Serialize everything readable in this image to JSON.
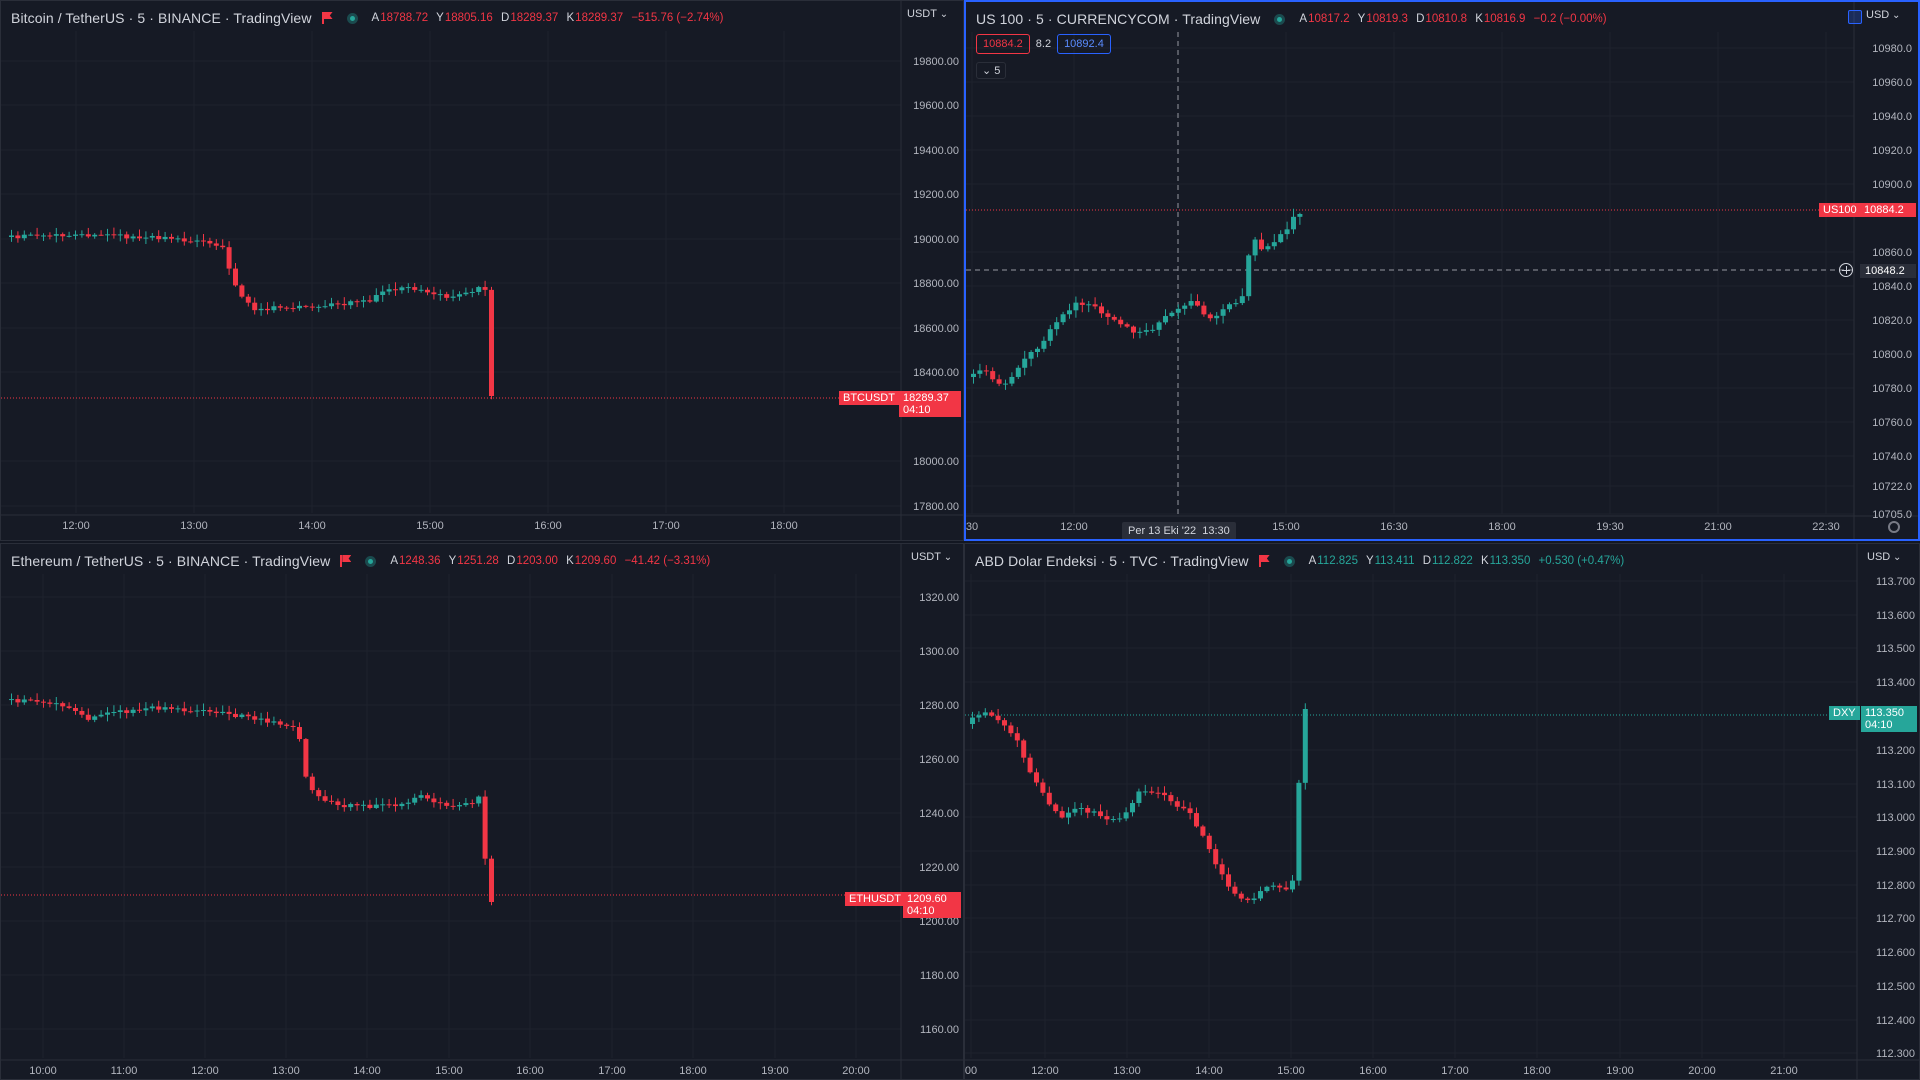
{
  "colors": {
    "up": "#26a69a",
    "down": "#f23645",
    "grid": "#1e222d",
    "axis_text": "#b2b5be",
    "active_border": "#2962ff",
    "bg": "#161a25"
  },
  "panes": [
    {
      "id": "btc",
      "symbol_line": "Bitcoin / TetherUS · 5 · BINANCE · TradingView",
      "ohlc": [
        {
          "k": "A",
          "v": "18788.72"
        },
        {
          "k": "Y",
          "v": "18805.16"
        },
        {
          "k": "D",
          "v": "18289.37"
        },
        {
          "k": "K",
          "v": "18289.37"
        }
      ],
      "change": "−515.76 (−2.74%)",
      "direction": "down",
      "currency": "USDT",
      "price_ticks": [
        "19800.00",
        "19600.00",
        "19400.00",
        "19200.00",
        "19000.00",
        "18800.00",
        "18600.00",
        "18400.00",
        "18000.00",
        "17800.00"
      ],
      "time_ticks": [
        "12:00",
        "13:00",
        "14:00",
        "15:00",
        "16:00",
        "17:00",
        "18:00"
      ],
      "ticker_label": "BTCUSDT",
      "last_price": "18289.37",
      "countdown": "04:10"
    },
    {
      "id": "us100",
      "symbol_line": "US 100 · 5 · CURRENCYCOM · TradingView",
      "ohlc": [
        {
          "k": "A",
          "v": "10817.2"
        },
        {
          "k": "Y",
          "v": "10819.3"
        },
        {
          "k": "D",
          "v": "10810.8"
        },
        {
          "k": "K",
          "v": "10816.9"
        }
      ],
      "change": "−0.2 (−0.00%)",
      "direction": "down",
      "currency": "USD",
      "sell_price": "10884.2",
      "spread": "8.2",
      "buy_price": "10892.4",
      "collapse_label": "5",
      "price_ticks": [
        "10980.0",
        "10960.0",
        "10940.0",
        "10920.0",
        "10900.0",
        "10860.0",
        "10840.0",
        "10820.0",
        "10800.0",
        "10780.0",
        "10760.0",
        "10740.0",
        "10722.0",
        "10705.0"
      ],
      "time_ticks": [
        "30",
        "12:00",
        "15:00",
        "16:30",
        "18:00",
        "19:30",
        "21:00",
        "22:30"
      ],
      "crosshair_date": "Per 13 Eki '22",
      "crosshair_time": "13:30",
      "ticker_label": "US100",
      "last_price": "10884.2",
      "crosshair_price": "10848.2"
    },
    {
      "id": "eth",
      "symbol_line": "Ethereum / TetherUS · 5 · BINANCE · TradingView",
      "ohlc": [
        {
          "k": "A",
          "v": "1248.36"
        },
        {
          "k": "Y",
          "v": "1251.28"
        },
        {
          "k": "D",
          "v": "1203.00"
        },
        {
          "k": "K",
          "v": "1209.60"
        }
      ],
      "change": "−41.42 (−3.31%)",
      "direction": "down",
      "currency": "USDT",
      "price_ticks": [
        "1320.00",
        "1300.00",
        "1280.00",
        "1260.00",
        "1240.00",
        "1220.00",
        "1200.00",
        "1180.00",
        "1160.00"
      ],
      "time_ticks": [
        "10:00",
        "11:00",
        "12:00",
        "13:00",
        "14:00",
        "15:00",
        "16:00",
        "17:00",
        "18:00",
        "19:00",
        "20:00"
      ],
      "ticker_label": "ETHUSDT",
      "last_price": "1209.60",
      "countdown": "04:10"
    },
    {
      "id": "dxy",
      "symbol_line": "ABD Dolar Endeksi · 5 · TVC · TradingView",
      "ohlc": [
        {
          "k": "A",
          "v": "112.825"
        },
        {
          "k": "Y",
          "v": "113.411"
        },
        {
          "k": "D",
          "v": "112.822"
        },
        {
          "k": "K",
          "v": "113.350"
        }
      ],
      "change": "+0.530 (+0.47%)",
      "direction": "up",
      "currency": "USD",
      "price_ticks": [
        "113.700",
        "113.600",
        "113.500",
        "113.400",
        "113.200",
        "113.100",
        "113.000",
        "112.900",
        "112.800",
        "112.700",
        "112.600",
        "112.500",
        "112.400",
        "112.300"
      ],
      "time_ticks": [
        "00",
        "12:00",
        "13:00",
        "14:00",
        "15:00",
        "16:00",
        "17:00",
        "18:00",
        "19:00",
        "20:00",
        "21:00"
      ],
      "ticker_label": "DXY",
      "last_price": "113.350",
      "countdown": "04:10"
    }
  ]
}
